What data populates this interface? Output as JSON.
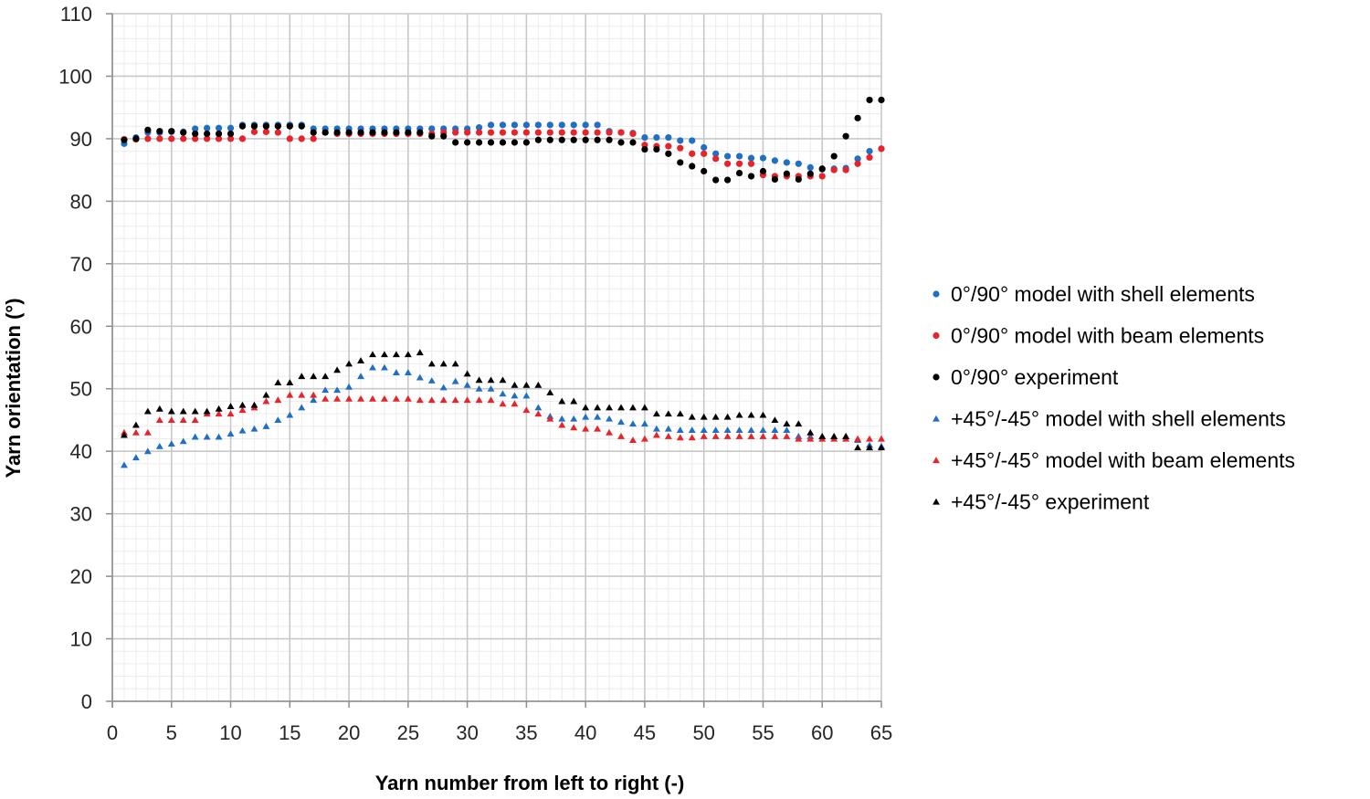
{
  "chart_data": {
    "type": "scatter",
    "xlabel": "Yarn number from left to right (-)",
    "ylabel": "Yarn orientation (°)",
    "xlim": [
      0,
      65
    ],
    "ylim": [
      0,
      110
    ],
    "xticks": [
      0,
      5,
      10,
      15,
      20,
      25,
      30,
      35,
      40,
      45,
      50,
      55,
      60,
      65
    ],
    "yticks": [
      0,
      10,
      20,
      30,
      40,
      50,
      60,
      70,
      80,
      90,
      100,
      110
    ],
    "grid": "major and minor",
    "legend_position": "right",
    "x": [
      1,
      2,
      3,
      4,
      5,
      6,
      7,
      8,
      9,
      10,
      11,
      12,
      13,
      14,
      15,
      16,
      17,
      18,
      19,
      20,
      21,
      22,
      23,
      24,
      25,
      26,
      27,
      28,
      29,
      30,
      31,
      32,
      33,
      34,
      35,
      36,
      37,
      38,
      39,
      40,
      41,
      42,
      43,
      44,
      45,
      46,
      47,
      48,
      49,
      50,
      51,
      52,
      53,
      54,
      55,
      56,
      57,
      58,
      59,
      60,
      61,
      62,
      63,
      64,
      65
    ],
    "series": [
      {
        "name": "0°/90° model with shell elements",
        "marker": "circle",
        "color": "#1f6fc5",
        "values": [
          89.2,
          90.2,
          91.0,
          91.0,
          91.1,
          91.1,
          91.6,
          91.7,
          91.7,
          91.7,
          92.2,
          92.2,
          92.2,
          92.2,
          92.2,
          92.2,
          91.6,
          91.6,
          91.6,
          91.6,
          91.6,
          91.6,
          91.6,
          91.6,
          91.6,
          91.6,
          91.6,
          91.6,
          91.6,
          91.6,
          91.8,
          92.2,
          92.2,
          92.2,
          92.2,
          92.2,
          92.2,
          92.2,
          92.2,
          92.2,
          92.2,
          91.2,
          91.0,
          90.9,
          90.2,
          90.2,
          90.2,
          89.7,
          89.7,
          88.6,
          87.6,
          87.2,
          87.2,
          86.9,
          86.9,
          86.5,
          86.2,
          86.0,
          85.4,
          85.1,
          85.2,
          85.3,
          86.8,
          88.0,
          88.4
        ]
      },
      {
        "name": "0°/90° model with beam elements",
        "marker": "circle",
        "color": "#e8232a",
        "values": [
          89.9,
          89.9,
          90.0,
          90.0,
          90.0,
          90.0,
          90.0,
          90.0,
          90.0,
          90.0,
          90.0,
          91.1,
          91.1,
          91.0,
          90.0,
          90.0,
          90.0,
          91.0,
          90.8,
          90.8,
          90.8,
          90.8,
          90.8,
          90.8,
          90.8,
          90.8,
          90.8,
          91.0,
          91.0,
          91.0,
          91.0,
          91.0,
          91.0,
          91.0,
          91.0,
          91.0,
          91.0,
          91.0,
          91.0,
          91.0,
          91.0,
          91.0,
          91.0,
          90.8,
          89.0,
          88.8,
          88.8,
          88.5,
          87.6,
          87.6,
          86.8,
          86.0,
          86.0,
          86.0,
          84.2,
          84.0,
          84.0,
          84.0,
          84.0,
          84.0,
          85.0,
          85.0,
          86.0,
          87.0,
          88.4
        ]
      },
      {
        "name": "0°/90° experiment",
        "marker": "circle",
        "color": "#000000",
        "values": [
          89.8,
          90.0,
          91.4,
          91.2,
          91.2,
          91.0,
          90.8,
          90.8,
          90.8,
          90.8,
          92.0,
          92.0,
          92.0,
          92.0,
          92.0,
          92.0,
          91.0,
          91.0,
          91.0,
          91.0,
          91.0,
          91.0,
          91.0,
          91.0,
          91.0,
          91.0,
          90.4,
          90.4,
          89.4,
          89.4,
          89.4,
          89.4,
          89.4,
          89.4,
          89.4,
          89.8,
          89.8,
          89.8,
          89.8,
          89.8,
          89.8,
          89.8,
          89.4,
          89.4,
          88.3,
          88.3,
          87.6,
          86.2,
          85.6,
          84.8,
          83.4,
          83.4,
          84.5,
          84.0,
          84.8,
          83.5,
          84.4,
          83.5,
          84.4,
          85.2,
          87.2,
          90.4,
          93.3,
          96.2,
          96.2
        ]
      },
      {
        "name": "+45°/-45° model with shell elements",
        "marker": "triangle",
        "color": "#1f6fc5",
        "values": [
          37.8,
          39.0,
          40.0,
          40.8,
          41.2,
          41.6,
          42.3,
          42.3,
          42.3,
          42.8,
          43.3,
          43.6,
          44.0,
          45.0,
          45.8,
          47.0,
          48.2,
          49.8,
          49.8,
          50.3,
          52.0,
          53.4,
          53.4,
          52.6,
          52.6,
          51.8,
          51.3,
          50.2,
          51.2,
          50.6,
          50.0,
          50.0,
          49.2,
          48.9,
          48.9,
          47.0,
          45.6,
          45.2,
          45.2,
          45.5,
          45.5,
          45.2,
          44.7,
          44.4,
          44.4,
          43.6,
          43.6,
          43.4,
          43.4,
          43.4,
          43.4,
          43.4,
          43.4,
          43.4,
          43.4,
          43.4,
          43.4,
          42.4,
          42.4,
          42.4,
          42.4,
          42.4,
          41.8,
          41.0,
          40.8
        ]
      },
      {
        "name": "+45°/-45° model with beam elements",
        "marker": "triangle",
        "color": "#e8232a",
        "values": [
          43.0,
          43.0,
          43.0,
          45.0,
          45.0,
          45.0,
          45.0,
          46.0,
          46.0,
          46.0,
          46.6,
          47.0,
          48.0,
          48.2,
          49.0,
          49.0,
          49.0,
          48.4,
          48.4,
          48.4,
          48.4,
          48.4,
          48.4,
          48.4,
          48.4,
          48.2,
          48.2,
          48.2,
          48.2,
          48.2,
          48.2,
          48.2,
          47.6,
          47.6,
          46.6,
          46.0,
          45.2,
          44.2,
          43.8,
          43.6,
          43.6,
          43.0,
          42.4,
          41.8,
          42.0,
          42.6,
          42.4,
          42.2,
          42.2,
          42.4,
          42.4,
          42.4,
          42.4,
          42.4,
          42.4,
          42.4,
          42.4,
          42.0,
          42.0,
          42.0,
          42.0,
          42.0,
          42.0,
          42.0,
          42.0
        ]
      },
      {
        "name": "+45°/-45° experiment",
        "marker": "triangle",
        "color": "#000000",
        "values": [
          42.6,
          44.2,
          46.4,
          46.8,
          46.4,
          46.4,
          46.4,
          46.4,
          46.8,
          47.2,
          47.4,
          47.4,
          49.0,
          51.0,
          51.0,
          52.0,
          52.0,
          52.0,
          53.0,
          54.0,
          54.5,
          55.5,
          55.5,
          55.5,
          55.5,
          55.8,
          54.0,
          54.0,
          54.0,
          52.4,
          51.4,
          51.4,
          51.4,
          50.6,
          50.6,
          50.6,
          49.4,
          48.0,
          48.0,
          47.0,
          47.0,
          47.0,
          47.0,
          47.0,
          47.0,
          46.0,
          46.0,
          46.0,
          45.5,
          45.5,
          45.5,
          45.5,
          45.8,
          45.8,
          45.8,
          45.0,
          44.4,
          44.4,
          43.0,
          42.4,
          42.4,
          42.4,
          40.6,
          40.6,
          40.6
        ]
      }
    ]
  }
}
